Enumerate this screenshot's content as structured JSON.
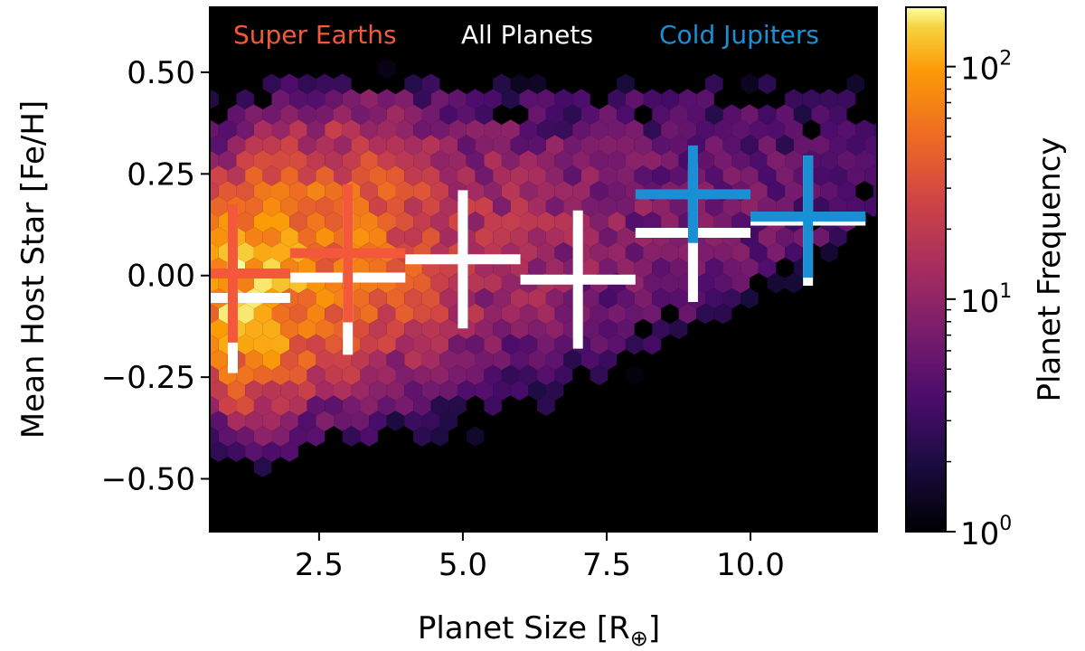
{
  "chart_data": {
    "type": "heatmap",
    "subtype": "hexbin with error-bar crosses",
    "xlabel": "Planet Size [R",
    "xlabel_subscript": "⊕",
    "xlabel_suffix": "]",
    "ylabel": "Mean Host Star [Fe/H]",
    "xlim": [
      0.6,
      12.2
    ],
    "ylim": [
      -0.63,
      0.66
    ],
    "x_ticks": [
      2.5,
      5.0,
      7.5,
      10.0
    ],
    "x_tick_labels": [
      "2.5",
      "5.0",
      "7.5",
      "10.0"
    ],
    "y_ticks": [
      0.5,
      0.25,
      0.0,
      -0.25,
      -0.5
    ],
    "y_tick_labels": [
      "0.50",
      "0.25",
      "0.00",
      "−0.25",
      "−0.50"
    ],
    "grid": false,
    "background": "#000000",
    "legend": {
      "placement": "top",
      "entries": [
        {
          "label": "Super Earths",
          "color": "#f4583b"
        },
        {
          "label": "All Planets",
          "color": "#ffffff"
        },
        {
          "label": "Cold Jupiters",
          "color": "#1a8fd6"
        }
      ]
    },
    "colorbar": {
      "label": "Planet Frequency",
      "scale": "log",
      "range": [
        1,
        180
      ],
      "tick_values": [
        100,
        10,
        1
      ],
      "tick_bases": [
        "10",
        "10",
        "10"
      ],
      "tick_exponents": [
        "2",
        "1",
        "0"
      ],
      "colormap": "inferno"
    },
    "series": [
      {
        "name": "All Planets",
        "color": "#ffffff",
        "points": [
          {
            "x": 1.0,
            "y": -0.055,
            "xerr": 1.0,
            "yerr": 0.185
          },
          {
            "x": 3.0,
            "y": -0.005,
            "xerr": 1.0,
            "yerr": 0.19
          },
          {
            "x": 5.0,
            "y": 0.04,
            "xerr": 1.0,
            "yerr": 0.17
          },
          {
            "x": 7.0,
            "y": -0.01,
            "xerr": 1.0,
            "yerr": 0.17
          },
          {
            "x": 9.0,
            "y": 0.105,
            "xerr": 1.0,
            "yerr": 0.17
          },
          {
            "x": 11.0,
            "y": 0.135,
            "xerr": 1.0,
            "yerr": 0.16
          }
        ]
      },
      {
        "name": "Super Earths",
        "color": "#f4583b",
        "points": [
          {
            "x": 1.0,
            "y": 0.005,
            "xerr": 1.0,
            "yerr": 0.17
          },
          {
            "x": 3.0,
            "y": 0.055,
            "xerr": 1.0,
            "yerr": 0.17
          }
        ]
      },
      {
        "name": "Cold Jupiters",
        "color": "#1a8fd6",
        "points": [
          {
            "x": 9.0,
            "y": 0.2,
            "xerr": 1.0,
            "yerr": 0.12
          },
          {
            "x": 11.0,
            "y": 0.145,
            "xerr": 1.0,
            "yerr": 0.15
          }
        ]
      }
    ]
  }
}
